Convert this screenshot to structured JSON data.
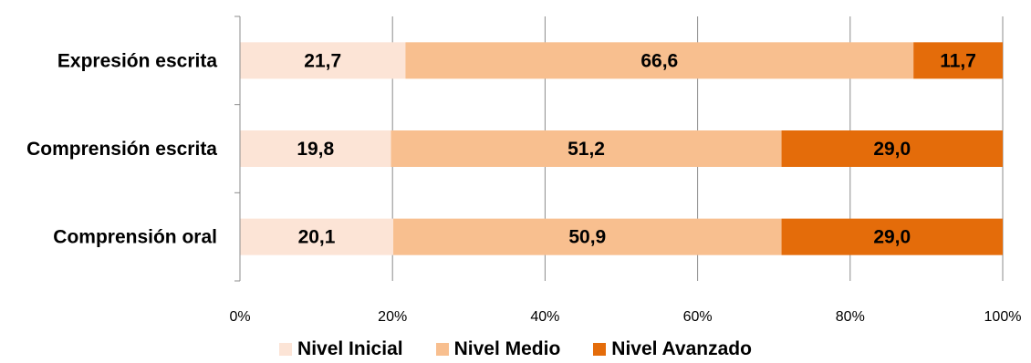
{
  "chart_data": {
    "type": "bar",
    "orientation": "horizontal",
    "stacked": "percent",
    "categories": [
      "Expresión escrita",
      "Comprensión escrita",
      "Comprensión oral"
    ],
    "series": [
      {
        "name": "Nivel Inicial",
        "color": "#FCE4D6",
        "values": [
          21.7,
          19.8,
          20.1
        ],
        "labels": [
          "21,7",
          "19,8",
          "20,1"
        ]
      },
      {
        "name": "Nivel Medio",
        "color": "#F8BF8F",
        "values": [
          66.6,
          51.2,
          50.9
        ],
        "labels": [
          "66,6",
          "51,2",
          "50,9"
        ]
      },
      {
        "name": "Nivel Avanzado",
        "color": "#E46C0A",
        "values": [
          11.7,
          29.0,
          29.0
        ],
        "labels": [
          "11,7",
          "29,0",
          "29,0"
        ]
      }
    ],
    "xlim": [
      0,
      100
    ],
    "xticks": [
      "0%",
      "20%",
      "40%",
      "60%",
      "80%",
      "100%"
    ],
    "grid": true,
    "legend_position": "bottom"
  }
}
